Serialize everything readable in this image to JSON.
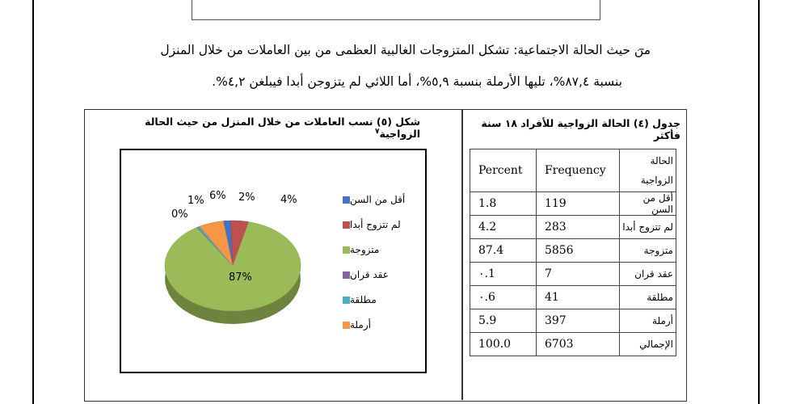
{
  "top_box_text": "...",
  "paragraph": {
    "bullet": "–",
    "line1": "من حيث الحالة الاجتماعية: تشكل المتزوجات الغالبية العظمى من بين العاملات من خلال المنزل",
    "line2": "بنسبة ٨٧,٤%، تليها الأرملة بنسبة ٥,٩%، أما اللائي لم يتزوجن أبدا فيبلغن ٤,٢%."
  },
  "figure": {
    "title": "شكل (٥) نسب العاملات من خلال المنزل من حيث الحالة الزواجية",
    "footnote": "٧"
  },
  "table": {
    "title": "جدول (٤) الحالة الزواجية للأفراد ١٨ سنة فأكثر",
    "headers": {
      "percent": "Percent",
      "frequency": "Frequency",
      "status": "الحالة الزواجية"
    },
    "rows": [
      {
        "percent": "1.8",
        "frequency": "119",
        "status": "أقل من السن"
      },
      {
        "percent": "4.2",
        "frequency": "283",
        "status": "لم تتزوج أبدا"
      },
      {
        "percent": "87.4",
        "frequency": "5856",
        "status": "متزوجة"
      },
      {
        "percent": "٠.1",
        "frequency": "7",
        "status": "عقد قران"
      },
      {
        "percent": "٠.6",
        "frequency": "41",
        "status": "مطلقة"
      },
      {
        "percent": "5.9",
        "frequency": "397",
        "status": "أرملة"
      },
      {
        "percent": "100.0",
        "frequency": "6703",
        "status": "الإجمالي"
      }
    ]
  },
  "chart_data": {
    "type": "pie",
    "title": "",
    "categories": [
      "أقل من السن",
      "لم تتزوج أبدا",
      "متزوجة",
      "عقد قران",
      "مطلقة",
      "أرملة"
    ],
    "values": [
      1.8,
      4.2,
      87.4,
      0.1,
      0.6,
      5.9
    ],
    "labels": [
      "2%",
      "4%",
      "87%",
      "0%",
      "1%",
      "6%"
    ],
    "colors": [
      "#4472C4",
      "#C0504D",
      "#9BBB59",
      "#8064A2",
      "#4BACC6",
      "#F79646"
    ],
    "legend_position": "right",
    "style": "3d"
  }
}
